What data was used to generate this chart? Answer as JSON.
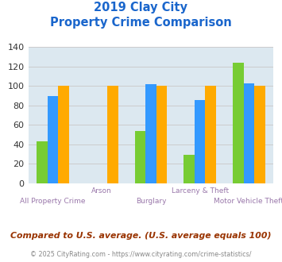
{
  "title_line1": "2019 Clay City",
  "title_line2": "Property Crime Comparison",
  "categories": [
    "All Property Crime",
    "Arson",
    "Burglary",
    "Larceny & Theft",
    "Motor Vehicle Theft"
  ],
  "series": {
    "Clay City": [
      43,
      0,
      54,
      29,
      124
    ],
    "Kentucky": [
      90,
      0,
      102,
      86,
      103
    ],
    "National": [
      100,
      100,
      100,
      100,
      100
    ]
  },
  "colors": {
    "Clay City": "#77cc33",
    "Kentucky": "#3399ff",
    "National": "#ffaa00"
  },
  "ylim": [
    0,
    140
  ],
  "yticks": [
    0,
    20,
    40,
    60,
    80,
    100,
    120,
    140
  ],
  "grid_color": "#cccccc",
  "bg_color": "#dce8f0",
  "title_color": "#1a66cc",
  "xlabel_color": "#9977aa",
  "legend_text_color": "#333333",
  "footer_text": "Compared to U.S. average. (U.S. average equals 100)",
  "footer_color": "#993300",
  "copyright_text": "© 2025 CityRating.com - https://www.cityrating.com/crime-statistics/",
  "copyright_color": "#888888",
  "bar_width": 0.22
}
